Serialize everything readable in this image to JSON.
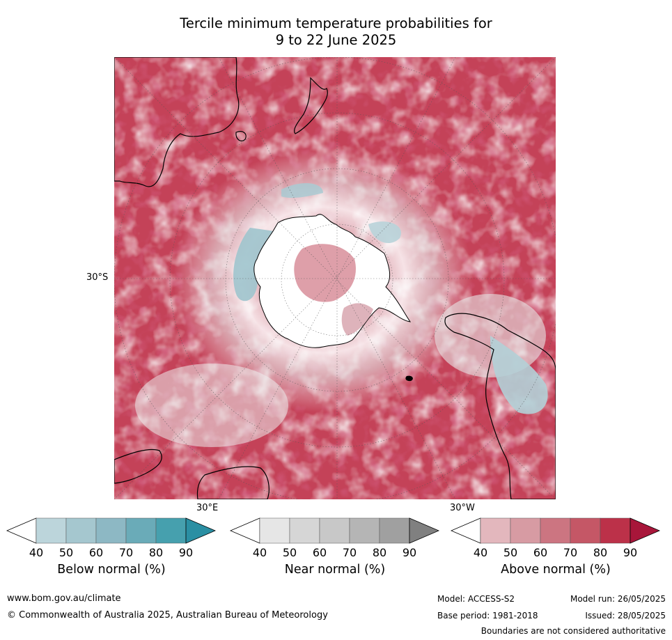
{
  "title": {
    "line1": "Tercile minimum temperature probabilities for",
    "line2": "9 to 22 June 2025"
  },
  "map": {
    "projection_labels": {
      "lat_left": "30°S",
      "lon_bottom_left": "30°E",
      "lon_bottom_right": "30°W"
    },
    "colors": {
      "ocean_above": "#c0344f",
      "land_outline": "#000000",
      "antarctica": "#ffffff"
    }
  },
  "colorbars": [
    {
      "label": "Below normal (%)",
      "ticks": [
        "40",
        "50",
        "60",
        "70",
        "80",
        "90"
      ],
      "colors": [
        "#ffffff",
        "#bcd5db",
        "#a5c7cf",
        "#8db8c4",
        "#6aabb8",
        "#46a0ae",
        "#2a8fa3"
      ]
    },
    {
      "label": "Near normal (%)",
      "ticks": [
        "40",
        "50",
        "60",
        "70",
        "80",
        "90"
      ],
      "colors": [
        "#ffffff",
        "#e6e6e6",
        "#d6d6d6",
        "#c8c8c8",
        "#b5b5b5",
        "#a0a0a0",
        "#808080"
      ]
    },
    {
      "label": "Above normal (%)",
      "ticks": [
        "40",
        "50",
        "60",
        "70",
        "80",
        "90"
      ],
      "colors": [
        "#ffffff",
        "#e3b7bd",
        "#d79ba3",
        "#cc7581",
        "#c55766",
        "#bc3149",
        "#a8163a"
      ]
    }
  ],
  "footer": {
    "url": "www.bom.gov.au/climate",
    "copyright": "© Commonwealth of Australia 2025, Australian Bureau of Meteorology",
    "model": "Model: ACCESS-S2",
    "model_run": "Model run: 26/05/2025",
    "base_period": "Base period: 1981-2018",
    "issued": "Issued: 28/05/2025",
    "boundaries": "Boundaries are not considered authoritative"
  }
}
